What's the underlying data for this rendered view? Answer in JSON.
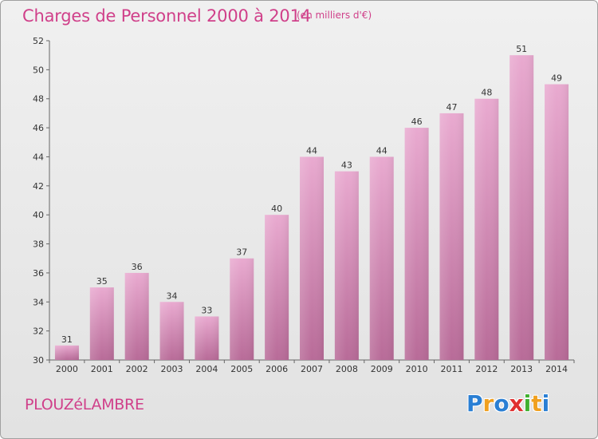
{
  "header": {
    "title": "Charges de Personnel 2000 à 2014",
    "subtitle": "(en milliers d'€)"
  },
  "footer": {
    "commune": "PLOUZéLAMBRE",
    "logo_text": "Proxiti",
    "logo_letters": [
      {
        "char": "P",
        "color": "#2a7fd4"
      },
      {
        "char": "r",
        "color": "#f0a020"
      },
      {
        "char": "o",
        "color": "#2a7fd4"
      },
      {
        "char": "x",
        "color": "#e03030"
      },
      {
        "char": "i",
        "color": "#40b030"
      },
      {
        "char": "t",
        "color": "#f0a020"
      },
      {
        "char": "i",
        "color": "#2a7fd4"
      }
    ]
  },
  "colors": {
    "bar_top": "#e9aad0",
    "bar_bottom": "#b86b98",
    "text_accent": "#d0408a",
    "axis": "#666666"
  },
  "chart_data": {
    "type": "bar",
    "title": "Charges de Personnel 2000 à 2014",
    "subtitle": "(en milliers d'€)",
    "categories": [
      "2000",
      "2001",
      "2002",
      "2003",
      "2004",
      "2005",
      "2006",
      "2007",
      "2008",
      "2009",
      "2010",
      "2011",
      "2012",
      "2013",
      "2014"
    ],
    "values": [
      31,
      35,
      36,
      34,
      33,
      37,
      40,
      44,
      43,
      44,
      46,
      47,
      48,
      51,
      49
    ],
    "ylim": [
      30,
      52
    ],
    "yticks": [
      30,
      32,
      34,
      36,
      38,
      40,
      42,
      44,
      46,
      48,
      50,
      52
    ],
    "grid": false,
    "data_labels": true
  }
}
